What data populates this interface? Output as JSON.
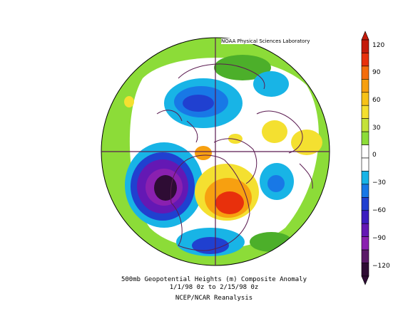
{
  "credit": "NOAA Physical Sciences Laboratory",
  "caption": {
    "line1": "500mb Geopotential Heights (m)   Composite Anomaly",
    "line2": "1/1/98 0z  to 2/15/98 0z",
    "line3": "NCEP/NCAR Reanalysis"
  },
  "colorbar": {
    "labels": [
      "120",
      "90",
      "60",
      "30",
      "0",
      "−30",
      "−60",
      "−90",
      "−120"
    ],
    "colors": [
      "#c41a0a",
      "#e8300c",
      "#f46d0c",
      "#f7a010",
      "#f6c218",
      "#f4e030",
      "#c4e23a",
      "#8cdc38",
      "#ffffff",
      "#ffffff",
      "#18b4e6",
      "#1878e6",
      "#2040d0",
      "#3c1ec0",
      "#6418b4",
      "#8a20b0",
      "#5a1a68",
      "#2e0c34"
    ]
  },
  "map_colors": {
    "ocean_ring": "#ffffff",
    "coast": "#5a1a50",
    "graticule": "#5a1a50"
  }
}
